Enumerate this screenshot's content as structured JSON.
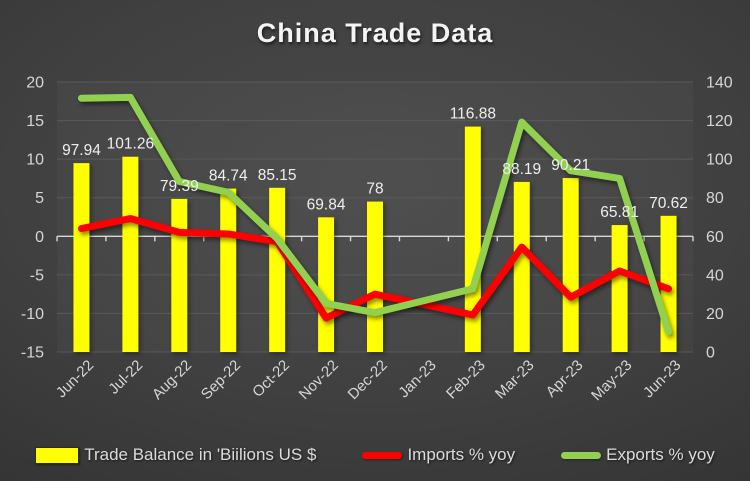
{
  "header": {
    "title": "China Trade Data"
  },
  "chart_data": {
    "type": "combo",
    "title": "China Trade Data",
    "categories": [
      "Jun-22",
      "Jul-22",
      "Aug-22",
      "Sep-22",
      "Oct-22",
      "Nov-22",
      "Dec-22",
      "Jan-23",
      "Feb-23",
      "Mar-23",
      "Apr-23",
      "May-23",
      "Jun-23"
    ],
    "series": [
      {
        "name": "Trade Balance in 'Biilions US $",
        "type": "bar",
        "axis": "right",
        "color": "#ffff00",
        "values": [
          97.94,
          101.26,
          79.39,
          84.74,
          85.15,
          69.84,
          78,
          null,
          116.88,
          88.19,
          90.21,
          65.81,
          70.62
        ],
        "data_labels": [
          "97.94",
          "101.26",
          "79.39",
          "84.74",
          "85.15",
          "69.84",
          "78",
          null,
          "116.88",
          "88.19",
          "90.21",
          "65.81",
          "70.62"
        ]
      },
      {
        "name": "Imports % yoy",
        "type": "line",
        "axis": "left",
        "color": "#ff0000",
        "values": [
          1.0,
          2.3,
          0.5,
          0.3,
          -0.7,
          -10.6,
          -7.5,
          null,
          -10.2,
          -1.4,
          -7.9,
          -4.5,
          -6.8
        ]
      },
      {
        "name": "Exports % yoy",
        "type": "line",
        "axis": "left",
        "color": "#92d050",
        "values": [
          17.9,
          18.0,
          7.1,
          5.7,
          -0.3,
          -8.7,
          -9.9,
          null,
          -6.8,
          14.8,
          8.5,
          7.5,
          -12.4
        ]
      }
    ],
    "left_axis": {
      "min": -15,
      "max": 20,
      "step": 5,
      "ticks": [
        20,
        15,
        10,
        5,
        0,
        -5,
        -10,
        -15
      ]
    },
    "right_axis": {
      "min": 0,
      "max": 140,
      "step": 20,
      "ticks": [
        140,
        120,
        100,
        80,
        60,
        40,
        20,
        0
      ]
    },
    "grid": true,
    "legend_position": "bottom"
  },
  "colors": {
    "background": "#3d3d3d",
    "gridline": "#5a5a5a",
    "zero_axis": "#d9d9d9",
    "text": "#d6d6d6",
    "bar": "#ffff00",
    "imports_line": "#ff0000",
    "exports_line": "#92d050"
  }
}
